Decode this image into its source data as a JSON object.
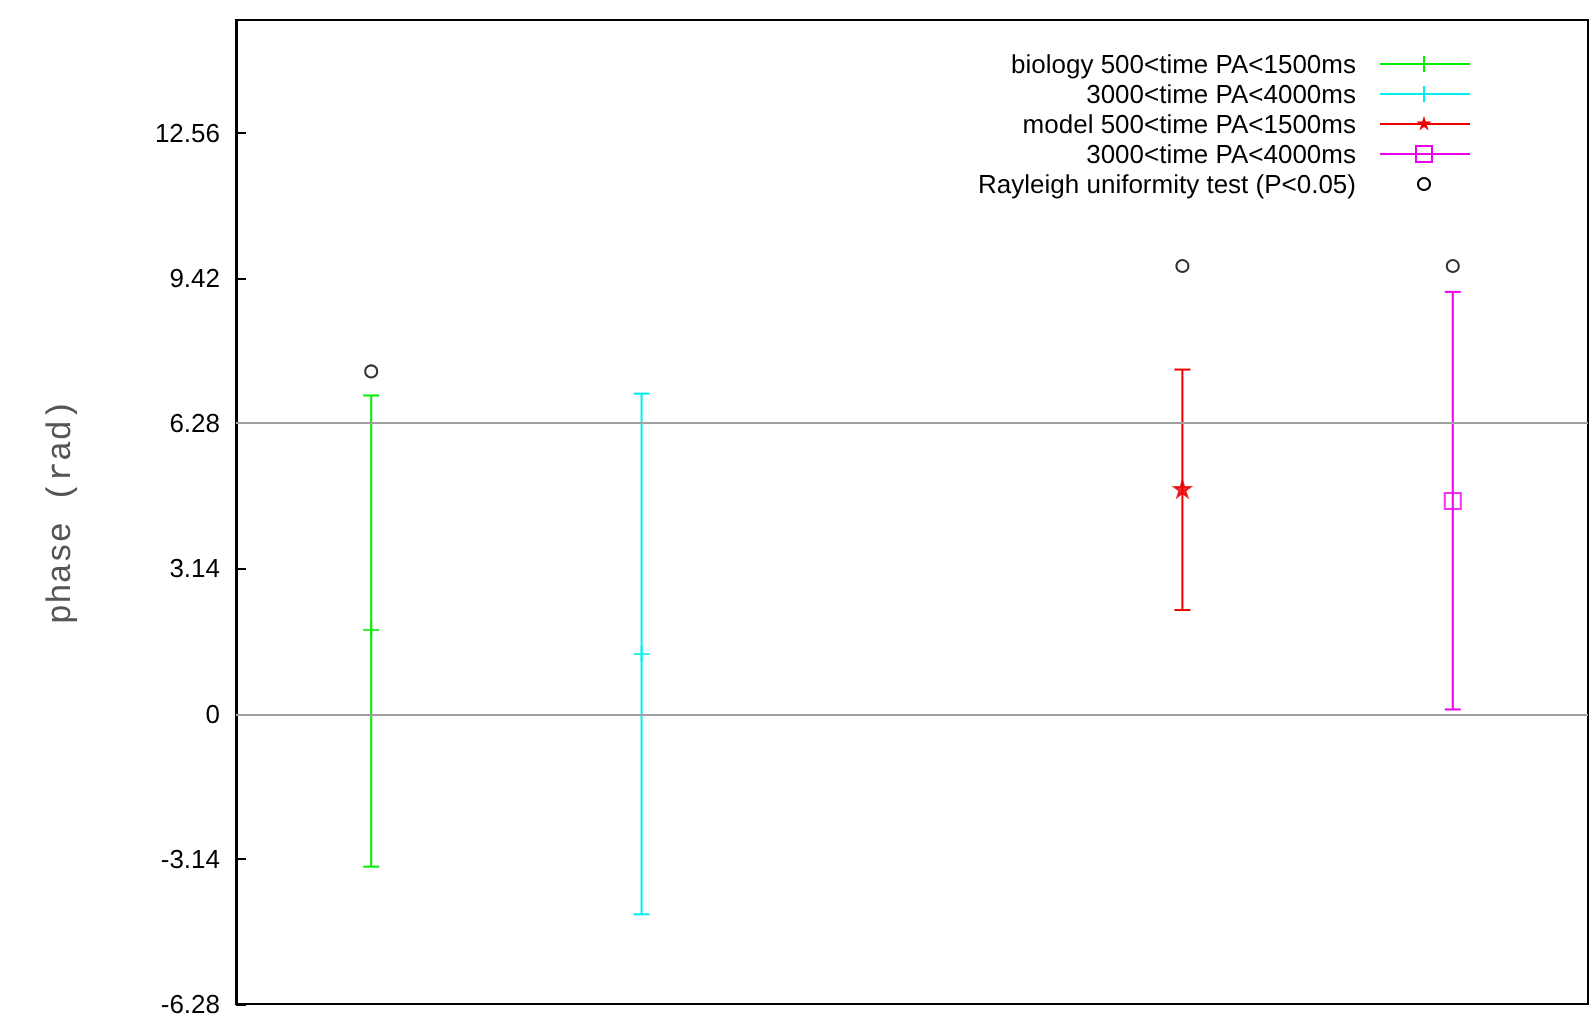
{
  "chart_data": {
    "type": "scatter",
    "ylabel": "phase (rad)",
    "categories": [
      null,
      null,
      null,
      null,
      null
    ],
    "ylim": [
      -6.28,
      15
    ],
    "yticks": [
      -6.28,
      -3.14,
      0,
      3.14,
      6.28,
      9.42,
      12.56
    ],
    "tick_labels": "y",
    "grid": false,
    "legend": "top right",
    "ref_lines": [
      {
        "axis": "y",
        "value": 0,
        "color": "#a0a0a0"
      },
      {
        "axis": "y",
        "value": 6.28,
        "color": "#a0a0a0"
      }
    ],
    "series": [
      {
        "name": "biology 500<time PA<1500ms",
        "color": "#00ee00",
        "marker": "cross",
        "values": [
          1.81,
          null,
          null,
          null,
          null
        ],
        "errors": [
          [
            -3.31,
            6.88
          ],
          null,
          null,
          null,
          null
        ]
      },
      {
        "name": "3000<time PA<4000ms",
        "color": "#00eeee",
        "marker": "cross",
        "values": [
          null,
          1.29,
          null,
          null,
          null
        ],
        "errors": [
          null,
          [
            -4.34,
            6.92
          ],
          null,
          null,
          null
        ]
      },
      {
        "name": "model 500<time PA<1500ms",
        "color": "#ee0000",
        "marker": "star",
        "values": [
          null,
          null,
          null,
          4.86,
          null
        ],
        "errors": [
          null,
          null,
          null,
          [
            2.24,
            7.44
          ],
          null
        ]
      },
      {
        "name": "3000<time PA<4000ms",
        "color": "#ee00ee",
        "marker": "square",
        "values": [
          null,
          null,
          null,
          null,
          4.6
        ],
        "errors": [
          null,
          null,
          null,
          null,
          [
            0.09,
            9.12
          ]
        ]
      },
      {
        "name": "Rayleigh uniformity test (P<0.05)",
        "color": "#000000",
        "marker": "circle",
        "values": [
          7.4,
          null,
          null,
          9.68,
          9.68
        ]
      }
    ]
  }
}
